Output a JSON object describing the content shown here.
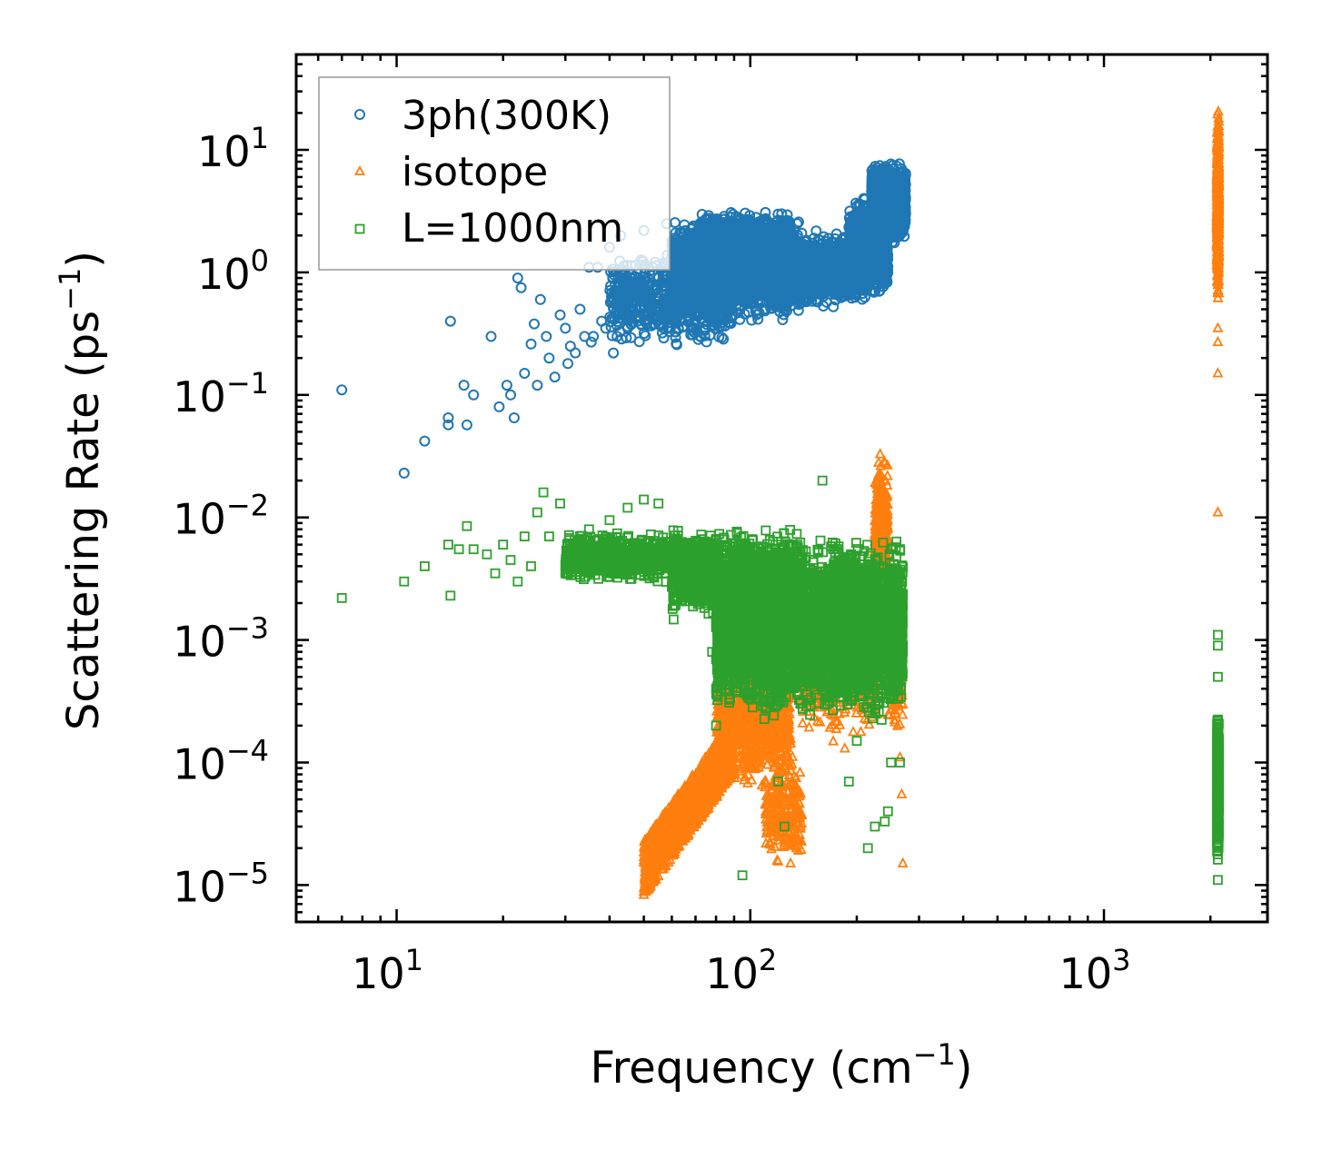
{
  "chart_data": {
    "type": "scatter",
    "title": "",
    "xlabel": "Frequency (cm",
    "xlabel_sup": "−1",
    "xlabel_end": ")",
    "ylabel": "Scattering Rate (ps",
    "ylabel_sup": "−1",
    "ylabel_end": ")",
    "xscale": "log",
    "yscale": "log",
    "xlim": [
      5.2,
      2900
    ],
    "ylim": [
      5e-06,
      60
    ],
    "x_ticks": [
      {
        "value": 10,
        "base": "10",
        "exp": "1"
      },
      {
        "value": 100,
        "base": "10",
        "exp": "2"
      },
      {
        "value": 1000,
        "base": "10",
        "exp": "3"
      }
    ],
    "y_ticks": [
      {
        "value": 10,
        "base": "10",
        "exp": "1"
      },
      {
        "value": 1,
        "base": "10",
        "exp": "0"
      },
      {
        "value": 0.1,
        "base": "10",
        "exp": "−1"
      },
      {
        "value": 0.01,
        "base": "10",
        "exp": "−2"
      },
      {
        "value": 0.001,
        "base": "10",
        "exp": "−3"
      },
      {
        "value": 0.0001,
        "base": "10",
        "exp": "−4"
      },
      {
        "value": 1e-05,
        "base": "10",
        "exp": "−5"
      }
    ],
    "legend_position": "top-left",
    "series": [
      {
        "name": "3ph(300K)",
        "marker": "circle",
        "color": "#1f77b4",
        "points": [
          [
            7.0,
            0.11
          ],
          [
            10.5,
            0.023
          ],
          [
            12.0,
            0.042
          ],
          [
            14.0,
            0.065
          ],
          [
            14.2,
            0.4
          ],
          [
            14.0,
            0.057
          ],
          [
            15.5,
            0.12
          ],
          [
            15.8,
            0.057
          ],
          [
            16.5,
            0.1
          ],
          [
            18.5,
            0.3
          ],
          [
            19.5,
            0.08
          ],
          [
            20.5,
            0.12
          ],
          [
            21.0,
            0.1
          ],
          [
            21.5,
            0.065
          ],
          [
            22.0,
            0.9
          ],
          [
            22.5,
            0.75
          ],
          [
            23.0,
            0.15
          ],
          [
            24.0,
            0.26
          ],
          [
            24.5,
            0.38
          ],
          [
            25.0,
            0.12
          ],
          [
            25.5,
            0.6
          ],
          [
            26.5,
            0.3
          ],
          [
            27.0,
            0.2
          ],
          [
            28.0,
            0.14
          ],
          [
            29.0,
            0.45
          ],
          [
            30.0,
            0.35
          ],
          [
            30.5,
            0.18
          ],
          [
            31.0,
            0.25
          ],
          [
            32.0,
            0.22
          ],
          [
            33.0,
            0.5
          ],
          [
            34.0,
            0.3
          ],
          [
            35.0,
            1.1
          ],
          [
            35.5,
            0.27
          ],
          [
            36.0,
            0.3
          ],
          [
            37.0,
            1.1
          ],
          [
            38.0,
            0.4
          ],
          [
            39.0,
            0.35
          ],
          [
            40.0,
            1.6
          ],
          [
            41.0,
            0.22
          ],
          [
            42.0,
            0.3
          ],
          [
            43.0,
            2.0
          ],
          [
            44.0,
            0.5
          ],
          [
            45.0,
            0.35
          ],
          [
            46.0,
            0.7
          ],
          [
            48.0,
            0.4
          ],
          [
            50.0,
            2.2
          ],
          [
            52.0,
            0.5
          ],
          [
            55.0,
            0.9
          ],
          [
            57.0,
            1.2
          ],
          [
            58.0,
            2.5
          ]
        ],
        "clusters": [
          {
            "x": [
              40,
              90
            ],
            "y_log": [
              -0.65,
              0.2
            ],
            "n": 700
          },
          {
            "x": [
              60,
              140
            ],
            "y_log": [
              -0.45,
              0.5
            ],
            "n": 2200
          },
          {
            "x": [
              120,
              200
            ],
            "y_log": [
              -0.3,
              0.35
            ],
            "n": 1700
          },
          {
            "x": [
              190,
              245
            ],
            "y_log": [
              -0.25,
              0.65
            ],
            "n": 1200
          },
          {
            "x": [
              220,
              275
            ],
            "y_log": [
              0.2,
              0.95
            ],
            "n": 1300
          },
          {
            "x": [
              72,
              130
            ],
            "y_log": [
              0.05,
              0.52
            ],
            "n": 900
          }
        ]
      },
      {
        "name": "isotope",
        "marker": "triangle",
        "color": "#ff7f0e",
        "points": [
          [
            2100,
            0.15
          ],
          [
            2100,
            0.27
          ],
          [
            2100,
            0.35
          ],
          [
            2100,
            0.011
          ],
          [
            270,
            1.5e-05
          ],
          [
            268,
            5.5e-05
          ],
          [
            185,
            0.00013
          ],
          [
            265,
            0.00011
          ],
          [
            130,
            1.5e-05
          ],
          [
            135,
            2e-05
          ],
          [
            120,
            2.5e-05
          ]
        ],
        "clusters": [
          {
            "x": [
              50,
              90
            ],
            "y_log": [
              -5.0,
              -4.0
            ],
            "band": "rising",
            "n": 1200
          },
          {
            "x": [
              80,
              130
            ],
            "y_log": [
              -4.3,
              -3.0
            ],
            "n": 900
          },
          {
            "x": [
              110,
              140
            ],
            "y_log": [
              -4.9,
              -3.9
            ],
            "n": 250
          },
          {
            "x": [
              140,
              230
            ],
            "y_log": [
              -3.9,
              -2.5
            ],
            "n": 600
          },
          {
            "x": [
              225,
              245
            ],
            "y_log": [
              -2.8,
              -1.4
            ],
            "n": 350
          },
          {
            "x": [
              245,
              270
            ],
            "y_log": [
              -3.8,
              -2.8
            ],
            "n": 150
          },
          {
            "x": [
              2100,
              2100
            ],
            "y_log": [
              -0.3,
              1.4
            ],
            "n": 500
          }
        ]
      },
      {
        "name": "L=1000nm",
        "marker": "square",
        "color": "#2ca02c",
        "points": [
          [
            7.0,
            0.0022
          ],
          [
            10.5,
            0.003
          ],
          [
            12.0,
            0.004
          ],
          [
            14.0,
            0.006
          ],
          [
            14.2,
            0.0023
          ],
          [
            15.0,
            0.0055
          ],
          [
            15.8,
            0.0085
          ],
          [
            16.5,
            0.0055
          ],
          [
            18.0,
            0.005
          ],
          [
            19.0,
            0.0035
          ],
          [
            20.0,
            0.006
          ],
          [
            21.0,
            0.0045
          ],
          [
            22.0,
            0.003
          ],
          [
            23.0,
            0.007
          ],
          [
            24.0,
            0.004
          ],
          [
            25.0,
            0.011
          ],
          [
            26.0,
            0.016
          ],
          [
            27.0,
            0.007
          ],
          [
            29.0,
            0.013
          ],
          [
            30.0,
            0.0035
          ],
          [
            31.0,
            0.0045
          ],
          [
            35.0,
            0.008
          ],
          [
            40.0,
            0.0095
          ],
          [
            45.0,
            0.012
          ],
          [
            50.0,
            0.014
          ],
          [
            55.0,
            0.013
          ],
          [
            80.0,
            0.0002
          ],
          [
            78.0,
            0.0008
          ],
          [
            95.0,
            1.2e-05
          ],
          [
            110.0,
            0.00045
          ],
          [
            120.0,
            7e-05
          ],
          [
            125.0,
            3e-05
          ],
          [
            160.0,
            0.02
          ],
          [
            190.0,
            7e-05
          ],
          [
            200.0,
            0.00015
          ],
          [
            215.0,
            2e-05
          ],
          [
            225.0,
            3e-05
          ],
          [
            240.0,
            3.3e-05
          ],
          [
            245.0,
            4e-05
          ],
          [
            250.0,
            0.0001
          ],
          [
            265.0,
            0.0001
          ],
          [
            270.0,
            0.0009
          ],
          [
            2100,
            0.0011
          ],
          [
            2100,
            0.0009
          ],
          [
            2100,
            1.1e-05
          ],
          [
            2100,
            0.0005
          ]
        ],
        "clusters": [
          {
            "x": [
              30,
              80
            ],
            "y_log": [
              -2.55,
              -2.1
            ],
            "n": 1100
          },
          {
            "x": [
              60,
              140
            ],
            "y_log": [
              -2.9,
              -2.05
            ],
            "n": 1200
          },
          {
            "x": [
              80,
              200
            ],
            "y_log": [
              -3.7,
              -2.1
            ],
            "n": 3500
          },
          {
            "x": [
              170,
              270
            ],
            "y_log": [
              -3.7,
              -2.1
            ],
            "n": 2200
          },
          {
            "x": [
              2100,
              2100
            ],
            "y_log": [
              -4.85,
              -3.5
            ],
            "n": 600
          }
        ]
      }
    ]
  }
}
